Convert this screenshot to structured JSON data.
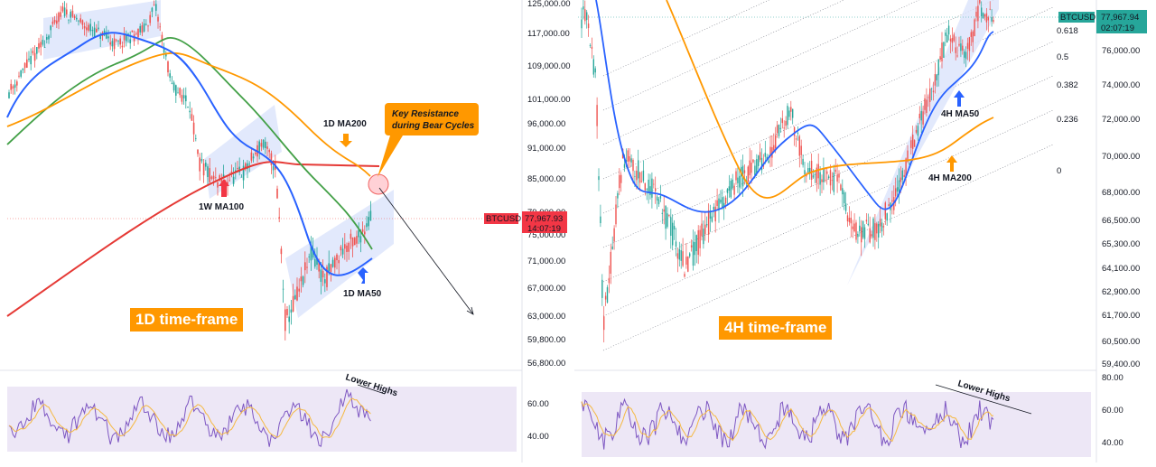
{
  "chart_data": [
    {
      "type": "candlestick",
      "panel": "left",
      "title": "1D time-frame",
      "symbol": "BTCUSD",
      "last_price": "77,967.93",
      "countdown": "14:07:19",
      "y_ticks": [
        "125,000.00",
        "117,000.00",
        "109,000.00",
        "101,000.00",
        "96,000.00",
        "91,000.00",
        "85,000.00",
        "79,000.00",
        "75,000.00",
        "71,000.00",
        "67,000.00",
        "63,000.00",
        "59,800.00",
        "56,800.00"
      ],
      "y_tick_values": [
        125000,
        117000,
        109000,
        101000,
        96000,
        91000,
        85000,
        79000,
        75000,
        71000,
        67000,
        63000,
        59800,
        56800
      ],
      "ylim": [
        56000,
        127000
      ],
      "annotations": [
        "1D MA200",
        "1W MA100",
        "1D MA50",
        "Key Resistance during Bear Cycles"
      ],
      "ma_colors": {
        "ma50": "#2962ff",
        "ma200_green": "#43a047",
        "ma_orange": "#ff9800",
        "ma100w": "#e53935"
      },
      "rsi": {
        "y_ticks": [
          "60.00",
          "40.00"
        ],
        "y_tick_values": [
          60,
          40
        ],
        "annotation": "Lower Highs"
      }
    },
    {
      "type": "candlestick",
      "panel": "right",
      "title": "4H time-frame",
      "symbol": "BTCUSD",
      "last_price": "77,967.94",
      "countdown": "02:07:19",
      "y_ticks": [
        "76,000.00",
        "74,000.00",
        "72,000.00",
        "70,000.00",
        "68,000.00",
        "66,500.00",
        "65,300.00",
        "64,100.00",
        "62,900.00",
        "61,700.00",
        "60,500.00",
        "59,400.00"
      ],
      "y_tick_values": [
        76000,
        74000,
        72000,
        70000,
        68000,
        66500,
        65300,
        64100,
        62900,
        61700,
        60500,
        59400
      ],
      "ylim": [
        58800,
        79500
      ],
      "fib_levels": [
        "0.618",
        "0.5",
        "0.382",
        "0.236",
        "0"
      ],
      "annotations": [
        "4H MA50",
        "4H MA200"
      ],
      "ma_colors": {
        "ma50": "#2962ff",
        "ma200": "#ff9800"
      },
      "rsi": {
        "y_ticks": [
          "80.00",
          "60.00",
          "40.00"
        ],
        "y_tick_values": [
          80,
          60,
          40
        ],
        "annotation": "Lower Highs"
      }
    }
  ],
  "colors": {
    "up": "#26a69a",
    "down": "#ef5350",
    "channel": "#dbe3fb",
    "rsi_band": "#ede7f6",
    "rsi_line": "#7e57c2",
    "rsi_ma": "#f5b942",
    "badge_red": "#f23645",
    "badge_green": "#26a69a"
  }
}
